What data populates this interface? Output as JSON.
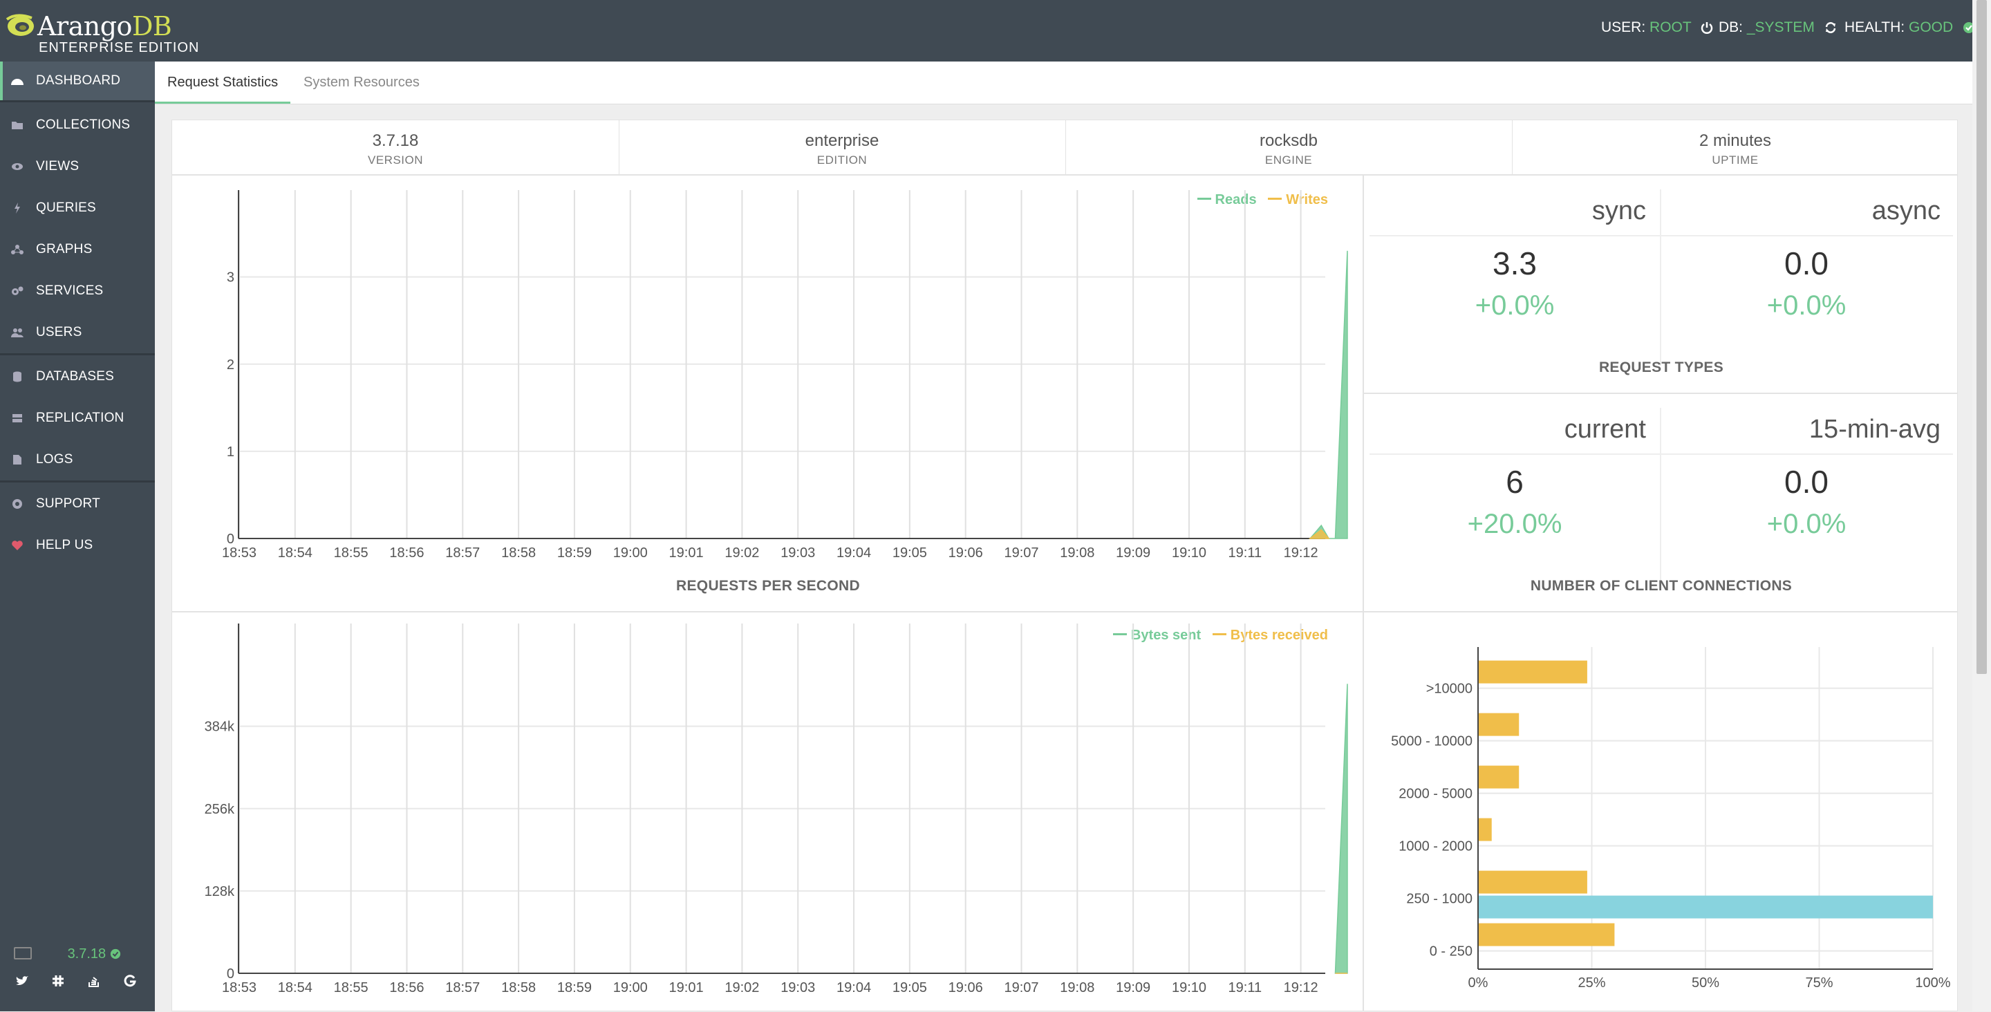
{
  "app": {
    "logo_word": "Arango",
    "logo_word_db": "DB",
    "edition": "ENTERPRISE EDITION"
  },
  "status": {
    "user_label": "USER:",
    "user_value": "ROOT",
    "db_label": "DB:",
    "db_value": "_SYSTEM",
    "health_label": "HEALTH:",
    "health_value": "GOOD"
  },
  "sidebar": {
    "items": [
      {
        "label": "DASHBOARD",
        "icon": "dashboard-icon"
      },
      {
        "label": "COLLECTIONS",
        "icon": "folder-icon"
      },
      {
        "label": "VIEWS",
        "icon": "eye-icon"
      },
      {
        "label": "QUERIES",
        "icon": "bolt-icon"
      },
      {
        "label": "GRAPHS",
        "icon": "graph-icon"
      },
      {
        "label": "SERVICES",
        "icon": "cogs-icon"
      },
      {
        "label": "USERS",
        "icon": "users-icon"
      },
      {
        "label": "DATABASES",
        "icon": "database-icon"
      },
      {
        "label": "REPLICATION",
        "icon": "server-icon"
      },
      {
        "label": "LOGS",
        "icon": "file-icon"
      },
      {
        "label": "SUPPORT",
        "icon": "lifebuoy-icon"
      },
      {
        "label": "HELP US",
        "icon": "heart-icon"
      }
    ],
    "version": "3.7.18"
  },
  "tabs": [
    "Request Statistics",
    "System Resources"
  ],
  "kpis": [
    {
      "value": "3.7.18",
      "label": "VERSION"
    },
    {
      "value": "enterprise",
      "label": "EDITION"
    },
    {
      "value": "rocksdb",
      "label": "ENGINE"
    },
    {
      "value": "2 minutes",
      "label": "UPTIME"
    }
  ],
  "request_types": {
    "title": "REQUEST TYPES",
    "cols": [
      {
        "head": "sync",
        "value": "3.3",
        "change": "+0.0%"
      },
      {
        "head": "async",
        "value": "0.0",
        "change": "+0.0%"
      }
    ]
  },
  "client_connections": {
    "title": "NUMBER OF CLIENT CONNECTIONS",
    "cols": [
      {
        "head": "current",
        "value": "6",
        "change": "+20.0%"
      },
      {
        "head": "15-min-avg",
        "value": "0.0",
        "change": "+0.0%"
      }
    ]
  },
  "colors": {
    "green": "#77cb99",
    "orange": "#f0be4a",
    "blue": "#88d3de",
    "sidebar": "#404a53"
  },
  "chart_data": [
    {
      "type": "area",
      "title": "REQUESTS PER SECOND",
      "x": [
        "18:53",
        "18:54",
        "18:55",
        "18:56",
        "18:57",
        "18:58",
        "18:59",
        "19:00",
        "19:01",
        "19:02",
        "19:03",
        "19:04",
        "19:05",
        "19:06",
        "19:07",
        "19:08",
        "19:09",
        "19:10",
        "19:11",
        "19:12"
      ],
      "yticks": [
        "0",
        "1",
        "2",
        "3"
      ],
      "ylim": [
        0,
        3.6
      ],
      "series": [
        {
          "name": "Reads",
          "color": "#77cb99",
          "points": [
            [
              "19:12:10",
              0
            ],
            [
              "19:12:22",
              0.15
            ],
            [
              "19:12:30",
              0
            ],
            [
              "19:12:37",
              0
            ],
            [
              "19:12:50",
              3.3
            ]
          ]
        },
        {
          "name": "Writes",
          "color": "#f0be4a",
          "points": [
            [
              "19:12:10",
              0
            ],
            [
              "19:12:22",
              0.1
            ],
            [
              "19:12:30",
              0
            ]
          ]
        }
      ],
      "legend": "top-right",
      "grid": true
    },
    {
      "type": "area",
      "title": "",
      "x": [
        "18:53",
        "18:54",
        "18:55",
        "18:56",
        "18:57",
        "18:58",
        "18:59",
        "19:00",
        "19:01",
        "19:02",
        "19:03",
        "19:04",
        "19:05",
        "19:06",
        "19:07",
        "19:08",
        "19:09",
        "19:10",
        "19:11",
        "19:12"
      ],
      "yticks": [
        "0",
        "128k",
        "256k",
        "384k"
      ],
      "ylim": [
        0,
        490000
      ],
      "series": [
        {
          "name": "Bytes sent",
          "color": "#77cb99",
          "points": [
            [
              "19:12:37",
              0
            ],
            [
              "19:12:50",
              450000
            ]
          ]
        },
        {
          "name": "Bytes received",
          "color": "#f0be4a",
          "points": [
            [
              "19:12:37",
              0
            ],
            [
              "19:12:50",
              0
            ]
          ]
        }
      ],
      "legend": "top-right",
      "grid": true
    },
    {
      "type": "bar",
      "orientation": "horizontal",
      "categories": [
        ">10000",
        "5000 - 10000",
        "2000 - 5000",
        "1000 - 2000",
        "250 - 1000",
        "0 - 250"
      ],
      "xticks": [
        "0%",
        "25%",
        "50%",
        "75%",
        "100%"
      ],
      "xlim": [
        0,
        100
      ],
      "series": [
        {
          "color": "#f0be4a",
          "values": [
            24,
            9,
            9,
            3,
            24,
            30
          ]
        },
        {
          "color": "#88d3de",
          "values": [
            0,
            0,
            0,
            0,
            100,
            0
          ]
        }
      ]
    }
  ]
}
